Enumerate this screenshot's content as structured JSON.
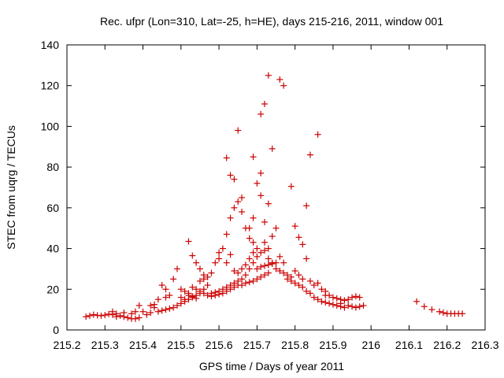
{
  "chart_data": {
    "type": "scatter",
    "title": "Rec. ufpr (Lon=310, Lat=-25, h=HE), days 215-216, 2011, window 001",
    "xlabel": "GPS time / Days of year 2011",
    "ylabel": "STEC from uqrg / TECUs",
    "xlim": [
      215.2,
      216.3
    ],
    "ylim": [
      0,
      140
    ],
    "x_ticks": [
      "215.2",
      "215.3",
      "215.4",
      "215.5",
      "215.6",
      "215.7",
      "215.8",
      "215.9",
      "216",
      "216.1",
      "216.2",
      "216.3"
    ],
    "y_ticks": [
      "0",
      "20",
      "40",
      "60",
      "80",
      "100",
      "120",
      "140"
    ],
    "grid": false,
    "marker": "+",
    "color": "#cc0000",
    "series": [
      {
        "points": [
          [
            215.25,
            6.5
          ],
          [
            215.26,
            7
          ],
          [
            215.27,
            7.5
          ],
          [
            215.28,
            7.2
          ],
          [
            215.29,
            7
          ],
          [
            215.3,
            7.3
          ],
          [
            215.31,
            7.8
          ],
          [
            215.32,
            7.5
          ],
          [
            215.32,
            9
          ],
          [
            215.33,
            8
          ],
          [
            215.34,
            7
          ],
          [
            215.35,
            6.5
          ],
          [
            215.36,
            6
          ],
          [
            215.37,
            5.5
          ],
          [
            215.38,
            5.5
          ],
          [
            215.39,
            6
          ],
          [
            215.33,
            6.5
          ],
          [
            215.35,
            8.5
          ],
          [
            215.37,
            8
          ],
          [
            215.38,
            9
          ],
          [
            215.39,
            12
          ],
          [
            215.4,
            9
          ],
          [
            215.41,
            7.5
          ],
          [
            215.42,
            8.5
          ],
          [
            215.42,
            12
          ],
          [
            215.43,
            11
          ],
          [
            215.44,
            9
          ],
          [
            215.45,
            9.5
          ],
          [
            215.46,
            10
          ],
          [
            215.47,
            10.5
          ],
          [
            215.48,
            11
          ],
          [
            215.49,
            12
          ],
          [
            215.43,
            12.5
          ],
          [
            215.45,
            22
          ],
          [
            215.46,
            20
          ],
          [
            215.47,
            17
          ],
          [
            215.48,
            25
          ],
          [
            215.49,
            30
          ],
          [
            215.44,
            15
          ],
          [
            215.46,
            16
          ],
          [
            215.5,
            13
          ],
          [
            215.51,
            14
          ],
          [
            215.52,
            15
          ],
          [
            215.53,
            16
          ],
          [
            215.54,
            17
          ],
          [
            215.55,
            18
          ],
          [
            215.56,
            18
          ],
          [
            215.57,
            17
          ],
          [
            215.5,
            20
          ],
          [
            215.51,
            19
          ],
          [
            215.52,
            18
          ],
          [
            215.53,
            21
          ],
          [
            215.54,
            20
          ],
          [
            215.55,
            24
          ],
          [
            215.56,
            25
          ],
          [
            215.57,
            26
          ],
          [
            215.5,
            16
          ],
          [
            215.51,
            15
          ],
          [
            215.52,
            17
          ],
          [
            215.53,
            16.5
          ],
          [
            215.54,
            15.5
          ],
          [
            215.55,
            19
          ],
          [
            215.56,
            20
          ],
          [
            215.57,
            22
          ],
          [
            215.52,
            43.5
          ],
          [
            215.53,
            36.5
          ],
          [
            215.54,
            33
          ],
          [
            215.55,
            30
          ],
          [
            215.56,
            27
          ],
          [
            215.58,
            28
          ],
          [
            215.59,
            33
          ],
          [
            215.6,
            35
          ],
          [
            215.58,
            18
          ],
          [
            215.59,
            18.5
          ],
          [
            215.6,
            19
          ],
          [
            215.61,
            20
          ],
          [
            215.62,
            21
          ],
          [
            215.63,
            22
          ],
          [
            215.64,
            23
          ],
          [
            215.65,
            24
          ],
          [
            215.58,
            16.5
          ],
          [
            215.59,
            17
          ],
          [
            215.6,
            17.5
          ],
          [
            215.61,
            18
          ],
          [
            215.62,
            19
          ],
          [
            215.63,
            20
          ],
          [
            215.64,
            21
          ],
          [
            215.65,
            22
          ],
          [
            215.6,
            38
          ],
          [
            215.61,
            40
          ],
          [
            215.62,
            47
          ],
          [
            215.63,
            55
          ],
          [
            215.64,
            60
          ],
          [
            215.65,
            63
          ],
          [
            215.66,
            65
          ],
          [
            215.62,
            84.5
          ],
          [
            215.63,
            76
          ],
          [
            215.64,
            74
          ],
          [
            215.65,
            98
          ],
          [
            215.66,
            58
          ],
          [
            215.67,
            50
          ],
          [
            215.68,
            45
          ],
          [
            215.69,
            43
          ],
          [
            215.7,
            40
          ],
          [
            215.62,
            33
          ],
          [
            215.63,
            37
          ],
          [
            215.64,
            29
          ],
          [
            215.65,
            28
          ],
          [
            215.66,
            30
          ],
          [
            215.67,
            32
          ],
          [
            215.68,
            35
          ],
          [
            215.69,
            38
          ],
          [
            215.66,
            22
          ],
          [
            215.67,
            23
          ],
          [
            215.68,
            23.5
          ],
          [
            215.69,
            24
          ],
          [
            215.7,
            25
          ],
          [
            215.71,
            26
          ],
          [
            215.72,
            27
          ],
          [
            215.73,
            28
          ],
          [
            215.66,
            25
          ],
          [
            215.67,
            27
          ],
          [
            215.68,
            30
          ],
          [
            215.69,
            33
          ],
          [
            215.7,
            36
          ],
          [
            215.71,
            38
          ],
          [
            215.72,
            39
          ],
          [
            215.73,
            40
          ],
          [
            215.68,
            50
          ],
          [
            215.69,
            55
          ],
          [
            215.7,
            72
          ],
          [
            215.71,
            77
          ],
          [
            215.71,
            66
          ],
          [
            215.72,
            53
          ],
          [
            215.69,
            85
          ],
          [
            215.71,
            106
          ],
          [
            215.72,
            111
          ],
          [
            215.73,
            125
          ],
          [
            215.76,
            123
          ],
          [
            215.77,
            120
          ],
          [
            215.74,
            89
          ],
          [
            215.73,
            62
          ],
          [
            215.75,
            50
          ],
          [
            215.74,
            46
          ],
          [
            215.72,
            43
          ],
          [
            215.73,
            35
          ],
          [
            215.74,
            33
          ],
          [
            215.75,
            30
          ],
          [
            215.76,
            29
          ],
          [
            215.77,
            28
          ],
          [
            215.78,
            27
          ],
          [
            215.79,
            26
          ],
          [
            215.7,
            30
          ],
          [
            215.71,
            31
          ],
          [
            215.72,
            31.5
          ],
          [
            215.73,
            32
          ],
          [
            215.74,
            32.5
          ],
          [
            215.75,
            33
          ],
          [
            215.76,
            36
          ],
          [
            215.77,
            33
          ],
          [
            215.79,
            70.5
          ],
          [
            215.8,
            51
          ],
          [
            215.81,
            45.5
          ],
          [
            215.82,
            42
          ],
          [
            215.83,
            61
          ],
          [
            215.84,
            86
          ],
          [
            215.86,
            96
          ],
          [
            215.83,
            35
          ],
          [
            215.78,
            25
          ],
          [
            215.79,
            24
          ],
          [
            215.8,
            23
          ],
          [
            215.81,
            22
          ],
          [
            215.82,
            21
          ],
          [
            215.83,
            19
          ],
          [
            215.84,
            18
          ],
          [
            215.85,
            16
          ],
          [
            215.8,
            29
          ],
          [
            215.81,
            27
          ],
          [
            215.82,
            25
          ],
          [
            215.84,
            24
          ],
          [
            215.85,
            22
          ],
          [
            215.86,
            23
          ],
          [
            215.87,
            20
          ],
          [
            215.88,
            17
          ],
          [
            215.86,
            15
          ],
          [
            215.87,
            14
          ],
          [
            215.88,
            13.5
          ],
          [
            215.89,
            13
          ],
          [
            215.9,
            12.5
          ],
          [
            215.91,
            12
          ],
          [
            215.92,
            11.5
          ],
          [
            215.93,
            11
          ],
          [
            215.88,
            19
          ],
          [
            215.89,
            17
          ],
          [
            215.9,
            16
          ],
          [
            215.91,
            15.5
          ],
          [
            215.92,
            15
          ],
          [
            215.93,
            14.5
          ],
          [
            215.94,
            15
          ],
          [
            215.95,
            16
          ],
          [
            215.94,
            12
          ],
          [
            215.95,
            11.5
          ],
          [
            215.96,
            11
          ],
          [
            215.97,
            11.5
          ],
          [
            215.98,
            12
          ],
          [
            215.96,
            16.5
          ],
          [
            215.97,
            16
          ],
          [
            215.92,
            13
          ],
          [
            216.12,
            14
          ],
          [
            216.14,
            11.5
          ],
          [
            216.16,
            10
          ],
          [
            216.18,
            9
          ],
          [
            216.19,
            8.5
          ],
          [
            216.2,
            8
          ],
          [
            216.21,
            8
          ],
          [
            216.22,
            8
          ],
          [
            216.23,
            8
          ],
          [
            216.24,
            8
          ]
        ]
      }
    ]
  }
}
